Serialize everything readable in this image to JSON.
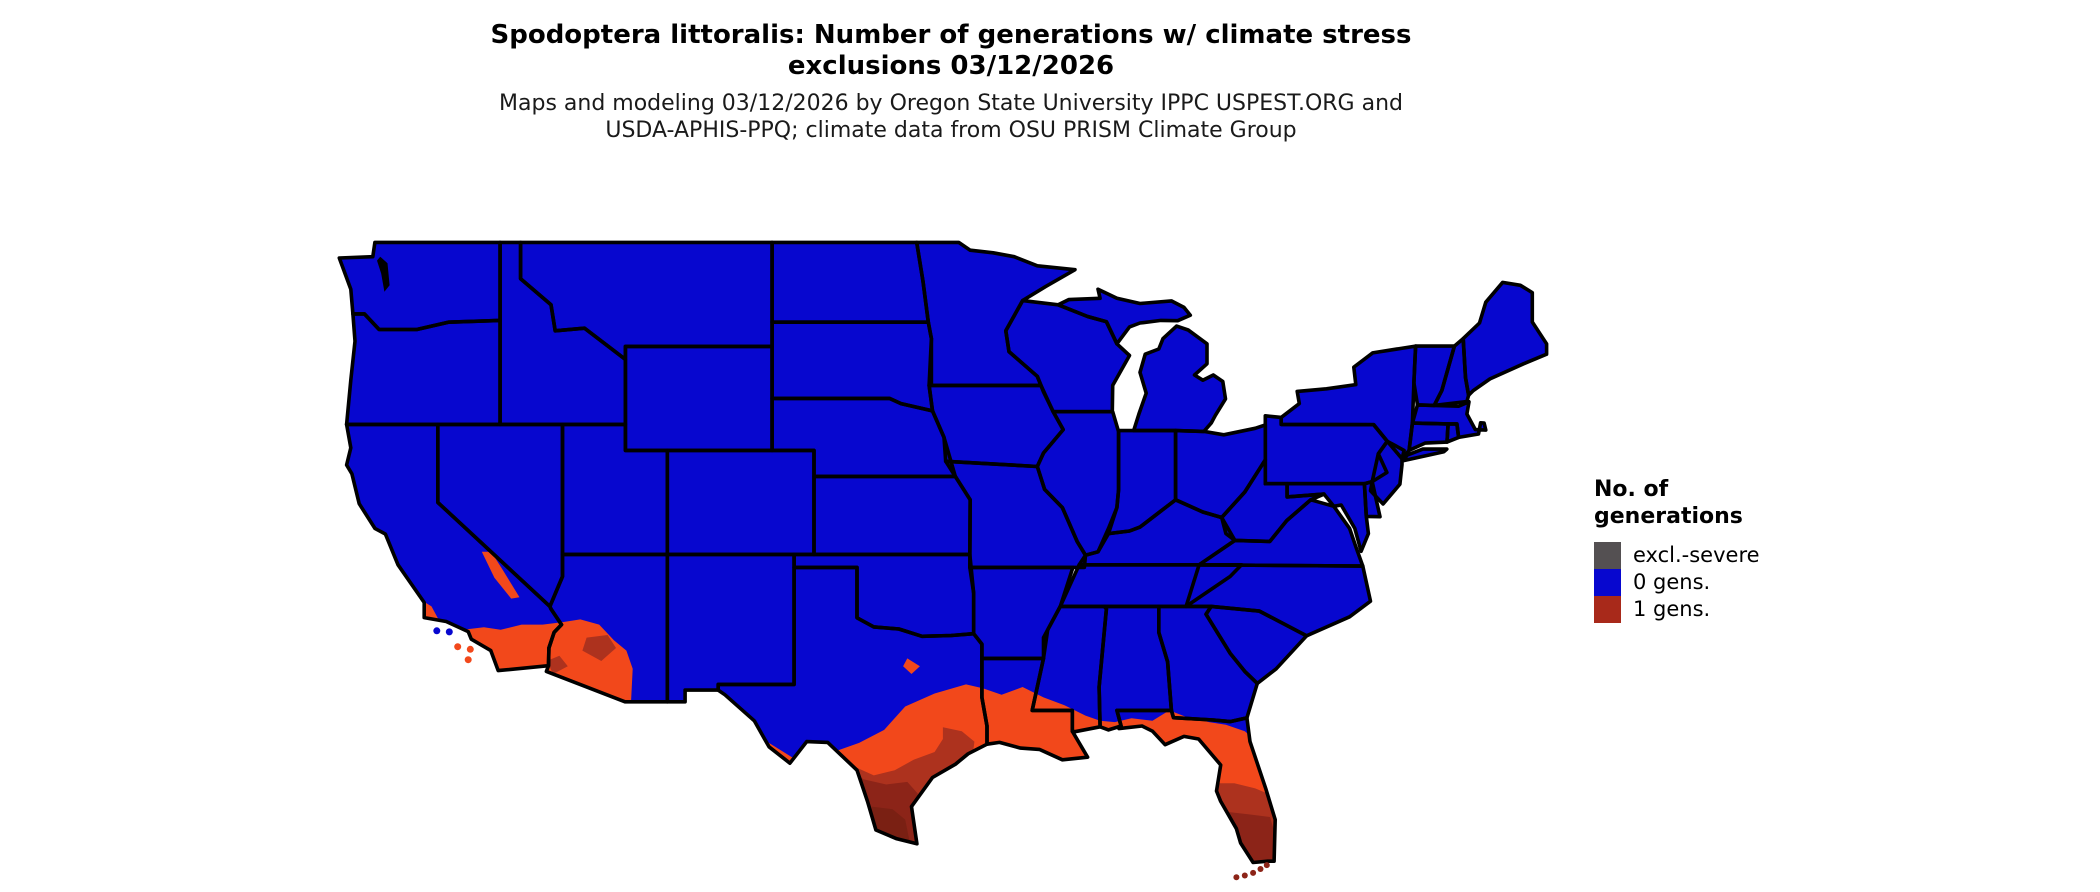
{
  "title": {
    "line1": "Spodoptera littoralis: Number of generations w/ climate stress",
    "line2": "exclusions 03/12/2026"
  },
  "subtitle": {
    "line1": "Maps and modeling 03/12/2026 by Oregon State University IPPC USPEST.ORG and",
    "line2": "USDA-APHIS-PPQ; climate data from OSU PRISM Climate Group"
  },
  "legend": {
    "title_line1": "No. of",
    "title_line2": "generations",
    "items": [
      {
        "label": "excl.-severe",
        "color": "#545052"
      },
      {
        "label": "0 gens.",
        "color": "#0707CF"
      },
      {
        "label": "1 gens.",
        "color": "#A8291A"
      }
    ]
  },
  "map": {
    "region_label": "Contiguous United States",
    "colors": {
      "zero_gens": "#0707CF",
      "one_gen_light": "#F2481B",
      "one_gen_mid": "#AD321E",
      "one_gen_deep": "#8C2418",
      "one_gen_deepest": "#7A2013",
      "state_border": "#000000",
      "water_detail": "#000000",
      "background": "#ffffff"
    },
    "classes_shown": [
      {
        "class": "0 gens.",
        "extent": "most of the contiguous United States"
      },
      {
        "class": "1 gens.",
        "extent": "southern coastal California, Death Valley area, southwestern Arizona, far-south Texas and Gulf Coast of Texas, southern Louisiana, Mississippi-Alabama coastline, peninsular Florida and the Florida Keys"
      },
      {
        "class": "excl.-severe",
        "extent": "not visible on map"
      }
    ]
  }
}
